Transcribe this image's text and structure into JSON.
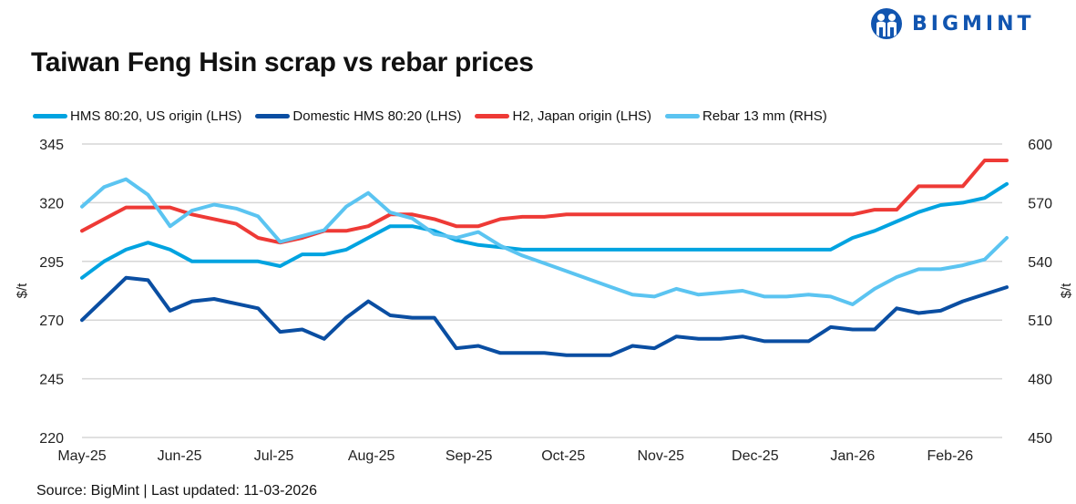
{
  "logo": {
    "text": "BIGMINT",
    "color": "#1155b0"
  },
  "chart_data": {
    "type": "line",
    "title": "Taiwan Feng Hsin scrap vs rebar prices",
    "ylabel_left": "$/t",
    "ylabel_right": "$/t",
    "ylim_left": [
      220,
      345
    ],
    "ylim_right": [
      450,
      600
    ],
    "yticks_left": [
      345,
      320,
      295,
      270,
      245,
      220
    ],
    "yticks_right": [
      600,
      570,
      540,
      510,
      480,
      450
    ],
    "xtick_labels": [
      "May-25",
      "Jun-25",
      "Jul-25",
      "Aug-25",
      "Sep-25",
      "Oct-25",
      "Nov-25",
      "Dec-25",
      "Jan-26",
      "Feb-26"
    ],
    "xtick_dates": [
      "2025-05-01",
      "2025-06-01",
      "2025-07-01",
      "2025-08-01",
      "2025-09-01",
      "2025-10-01",
      "2025-11-01",
      "2025-12-01",
      "2026-01-01",
      "2026-02-01"
    ],
    "grid": "horizontal",
    "legend_position": "top",
    "x": [
      "2025-05-01",
      "2025-05-08",
      "2025-05-15",
      "2025-05-22",
      "2025-05-29",
      "2025-06-05",
      "2025-06-12",
      "2025-06-19",
      "2025-06-26",
      "2025-07-03",
      "2025-07-10",
      "2025-07-17",
      "2025-07-24",
      "2025-07-31",
      "2025-08-07",
      "2025-08-14",
      "2025-08-21",
      "2025-08-28",
      "2025-09-04",
      "2025-09-11",
      "2025-09-18",
      "2025-09-25",
      "2025-10-02",
      "2025-10-09",
      "2025-10-16",
      "2025-10-23",
      "2025-10-30",
      "2025-11-06",
      "2025-11-13",
      "2025-11-20",
      "2025-11-27",
      "2025-12-04",
      "2025-12-11",
      "2025-12-18",
      "2025-12-25",
      "2026-01-01",
      "2026-01-08",
      "2026-01-15",
      "2026-01-22",
      "2026-01-29",
      "2026-02-05",
      "2026-02-12",
      "2026-02-19"
    ],
    "series": [
      {
        "name": "HMS 80:20, US origin (LHS)",
        "axis": "left",
        "color": "#00a3e0",
        "values": [
          288,
          295,
          300,
          303,
          300,
          295,
          295,
          295,
          295,
          293,
          298,
          298,
          300,
          305,
          310,
          310,
          308,
          304,
          302,
          301,
          300,
          300,
          300,
          300,
          300,
          300,
          300,
          300,
          300,
          300,
          300,
          300,
          300,
          300,
          300,
          305,
          308,
          312,
          316,
          319,
          320,
          322,
          328
        ]
      },
      {
        "name": "Domestic HMS 80:20 (LHS)",
        "axis": "left",
        "color": "#0a4ea2",
        "values": [
          270,
          279,
          288,
          287,
          274,
          278,
          279,
          277,
          275,
          265,
          266,
          262,
          271,
          278,
          272,
          271,
          271,
          258,
          259,
          256,
          256,
          256,
          255,
          255,
          255,
          259,
          258,
          263,
          262,
          262,
          263,
          261,
          261,
          261,
          267,
          266,
          266,
          275,
          273,
          274,
          278,
          281,
          284
        ]
      },
      {
        "name": "H2, Japan origin (LHS)",
        "axis": "left",
        "color": "#ee3a36",
        "values": [
          308,
          313,
          318,
          318,
          318,
          315,
          313,
          311,
          305,
          303,
          305,
          308,
          308,
          310,
          315,
          315,
          313,
          310,
          310,
          313,
          314,
          314,
          315,
          315,
          315,
          315,
          315,
          315,
          315,
          315,
          315,
          315,
          315,
          315,
          315,
          315,
          317,
          317,
          327,
          327,
          327,
          338,
          338
        ]
      },
      {
        "name": "Rebar 13 mm (RHS)",
        "axis": "right",
        "color": "#5bc4f1",
        "values": [
          568,
          578,
          582,
          574,
          558,
          566,
          569,
          567,
          563,
          550,
          553,
          556,
          568,
          575,
          565,
          562,
          554,
          552,
          555,
          548,
          543,
          539,
          535,
          531,
          527,
          523,
          522,
          526,
          523,
          524,
          525,
          522,
          522,
          523,
          522,
          518,
          526,
          532,
          536,
          536,
          538,
          541,
          552
        ]
      }
    ]
  },
  "footer": {
    "source": "Source: BigMint |  Last updated: 11-03-2026"
  }
}
